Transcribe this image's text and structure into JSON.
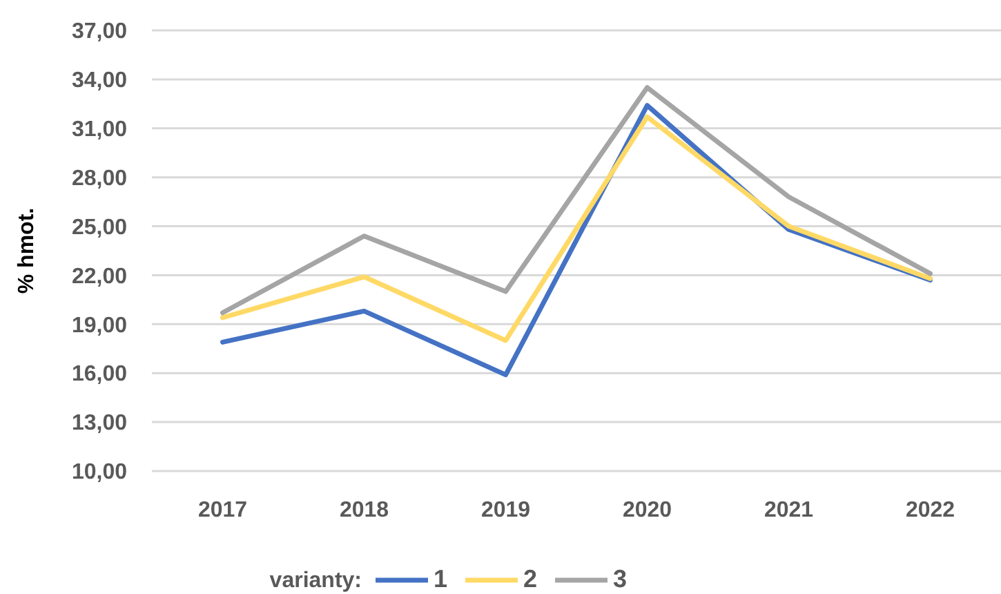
{
  "chart_data": {
    "type": "line",
    "ylabel": "% hmot.",
    "legend_title": "varianty:",
    "categories": [
      "2017",
      "2018",
      "2019",
      "2020",
      "2021",
      "2022"
    ],
    "series": [
      {
        "name": "1",
        "color": "#4472c4",
        "values": [
          17.9,
          19.8,
          15.9,
          32.4,
          24.8,
          21.7
        ]
      },
      {
        "name": "2",
        "color": "#ffd966",
        "values": [
          19.4,
          21.9,
          18.0,
          31.7,
          25.0,
          21.8
        ]
      },
      {
        "name": "3",
        "color": "#a5a5a5",
        "values": [
          19.7,
          24.4,
          21.0,
          33.5,
          26.8,
          22.1
        ]
      }
    ],
    "ylim": [
      10,
      37
    ],
    "yticks": [
      {
        "value": 10,
        "label": "10,00"
      },
      {
        "value": 13,
        "label": "13,00"
      },
      {
        "value": 16,
        "label": "16,00"
      },
      {
        "value": 19,
        "label": "19,00"
      },
      {
        "value": 22,
        "label": "22,00"
      },
      {
        "value": 25,
        "label": "25,00"
      },
      {
        "value": 28,
        "label": "28,00"
      },
      {
        "value": 31,
        "label": "31,00"
      },
      {
        "value": 34,
        "label": "34,00"
      },
      {
        "value": 37,
        "label": "37,00"
      }
    ],
    "grid": "y",
    "legend": "bottom",
    "marker": "none",
    "line_style": "solid"
  }
}
